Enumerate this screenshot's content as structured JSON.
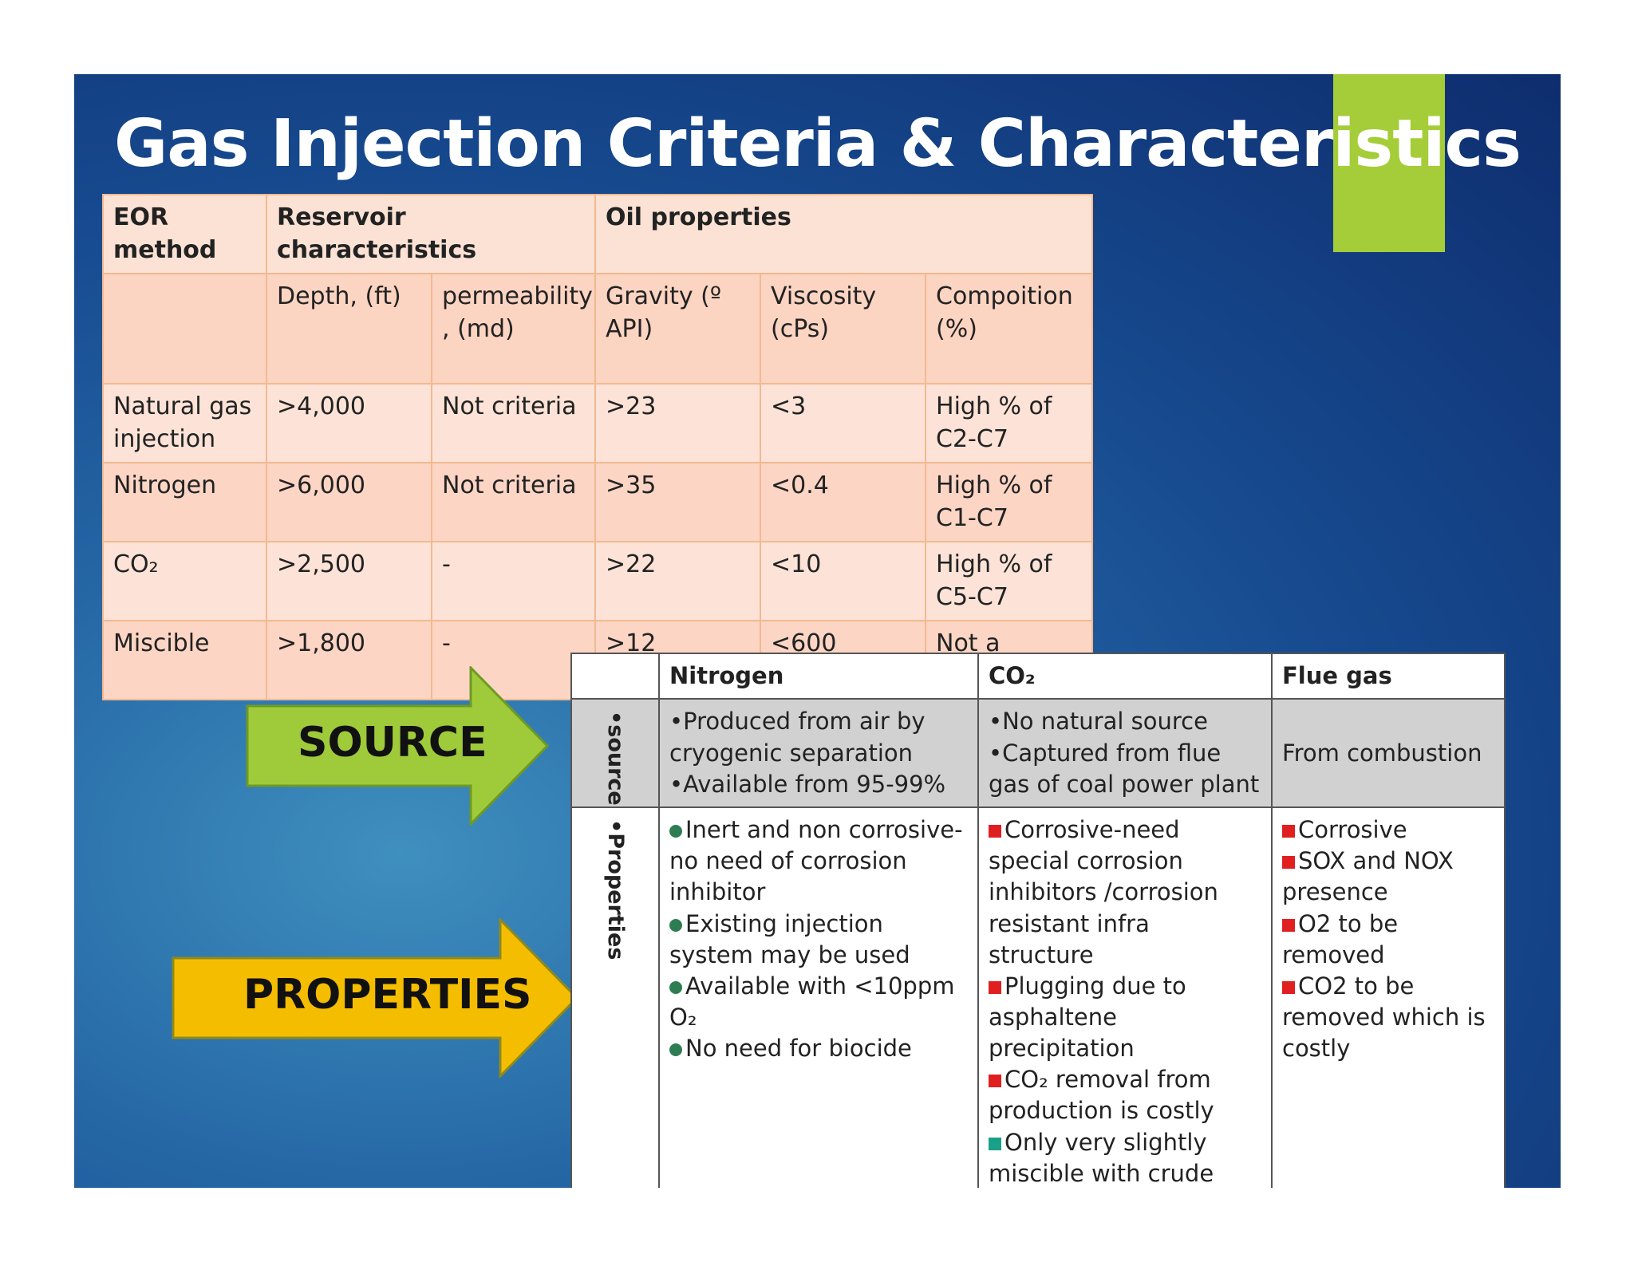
{
  "title": "Gas Injection Criteria & Characteristics",
  "colors": {
    "accent_green": "#a5cd39",
    "arrow_green": "#9fca3a",
    "arrow_yellow": "#f5bd00"
  },
  "table1": {
    "header1": [
      "EOR method",
      "Reservoir characteristics",
      "Oil properties"
    ],
    "header2": [
      "",
      "Depth, (ft)",
      "permeability , (md)",
      "Gravity (º API)",
      "Viscosity (cPs)",
      "Compoition (%)"
    ],
    "rows": [
      [
        "Natural gas injection",
        ">4,000",
        "Not criteria",
        ">23",
        "<3",
        "High % of C2-C7"
      ],
      [
        "Nitrogen",
        ">6,000",
        "Not criteria",
        ">35",
        "<0.4",
        "High % of C1-C7"
      ],
      [
        "CO₂",
        ">2,500",
        "-",
        ">22",
        "<10",
        "High % of C5-C7"
      ],
      [
        "Miscible",
        ">1,800",
        "-",
        ">12",
        "<600",
        "Not a criteria"
      ]
    ]
  },
  "table2": {
    "headers": [
      "",
      "Nitrogen",
      "CO₂",
      "Flue gas"
    ],
    "source_label": "•source",
    "properties_label": "•Properties",
    "source": {
      "nitrogen": [
        "•Produced from air by cryogenic separation",
        "•Available from 95-99%"
      ],
      "co2": [
        "•No natural source",
        "•Captured from flue gas of coal power plant"
      ],
      "flue": "From combustion"
    },
    "properties": {
      "nitrogen": [
        "Inert and non corrosive- no need of corrosion inhibitor",
        "Existing injection system may be used",
        "Available with <10ppm O₂",
        "No need for biocide"
      ],
      "co2": [
        "Corrosive-need special corrosion inhibitors /corrosion resistant infra structure",
        "Plugging due to asphaltene precipitation",
        "CO₂ removal from production is costly",
        "Only very slightly miscible with crude"
      ],
      "flue": [
        "Corrosive",
        "SOX and NOX presence",
        "O2 to be removed",
        "CO2 to be removed  which is costly"
      ]
    }
  },
  "arrows": {
    "source": "SOURCE",
    "properties": "PROPERTIES"
  }
}
